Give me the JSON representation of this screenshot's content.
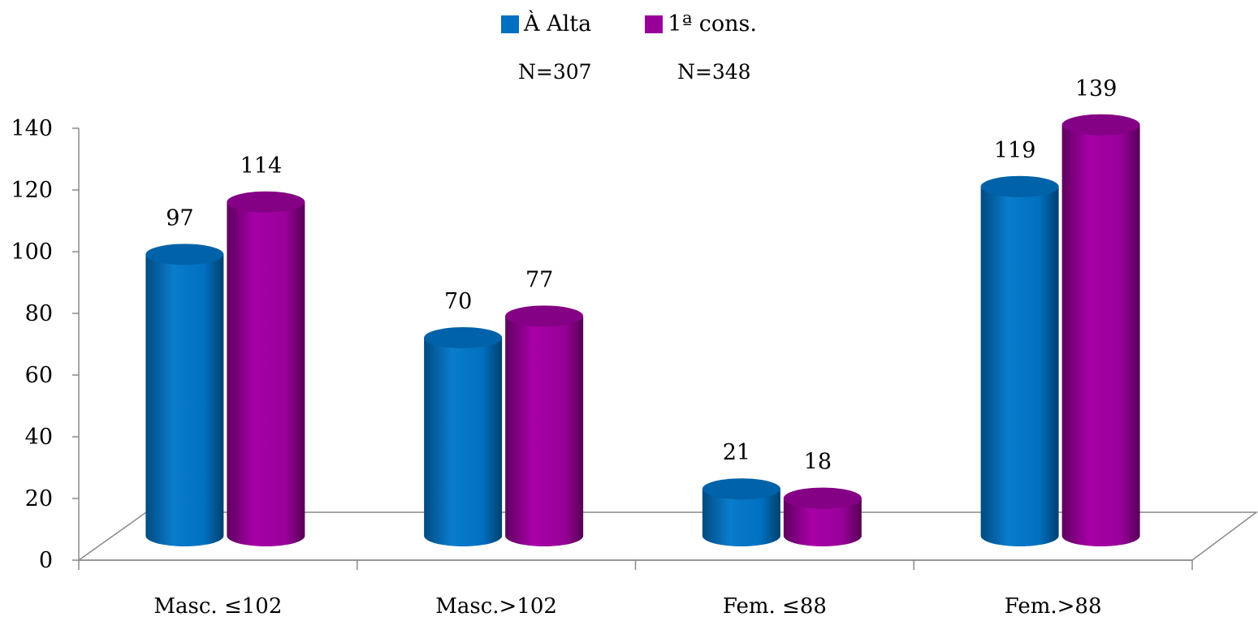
{
  "chart_data": {
    "type": "bar",
    "categories": [
      "Masc. ≤102",
      "Masc.>102",
      "Fem. ≤88",
      "Fem.>88"
    ],
    "series": [
      {
        "name": "À Alta",
        "color": "#0070C0",
        "values": [
          97,
          70,
          21,
          119
        ]
      },
      {
        "name": "1ª cons.",
        "color": "#990099",
        "values": [
          114,
          77,
          18,
          139
        ]
      }
    ],
    "sample_sizes": [
      "N=307",
      "N=348"
    ],
    "ylim": [
      0,
      140
    ],
    "yticks": [
      "0",
      "20",
      "40",
      "60",
      "80",
      "100",
      "120",
      "140"
    ],
    "grid": false,
    "legend_position": "top-center",
    "style": "3d-cylinder"
  }
}
